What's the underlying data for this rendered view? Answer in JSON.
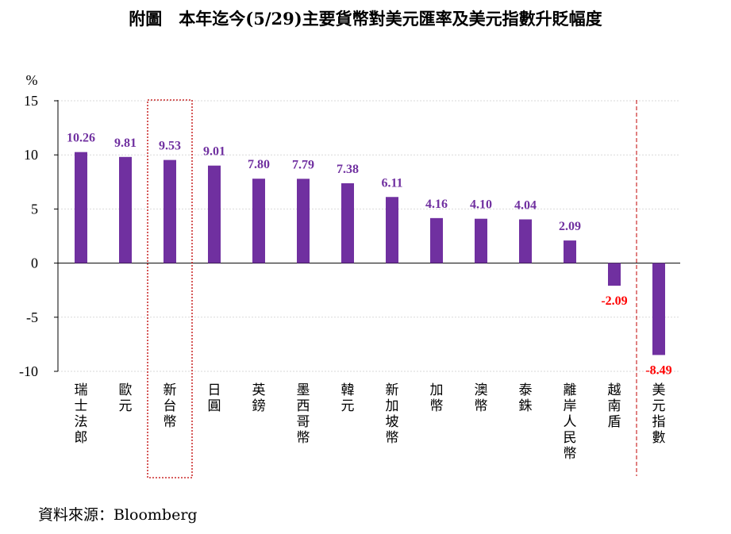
{
  "chart_data": {
    "type": "bar",
    "title": "附圖　本年迄今(5/29)主要貨幣對美元匯率及美元指數升貶幅度",
    "ylabel": "%",
    "ylim": [
      -10,
      15
    ],
    "yticks": [
      15,
      10,
      5,
      0,
      -5,
      -10
    ],
    "grid": true,
    "categories": [
      "瑞士法郎",
      "歐元",
      "新台幣",
      "日圓",
      "英鎊",
      "墨西哥幣",
      "韓元",
      "新加坡幣",
      "加幣",
      "澳幣",
      "泰銖",
      "離岸人民幣",
      "越南盾",
      "美元指數"
    ],
    "values": [
      10.26,
      9.81,
      9.53,
      9.01,
      7.8,
      7.79,
      7.38,
      6.11,
      4.16,
      4.1,
      4.04,
      2.09,
      -2.09,
      -8.49
    ],
    "value_labels": [
      "10.26",
      "9.81",
      "9.53",
      "9.01",
      "7.80",
      "7.79",
      "7.38",
      "6.11",
      "4.16",
      "4.10",
      "4.04",
      "2.09",
      "-2.09",
      "-8.49"
    ],
    "highlight_category": "新台幣",
    "source": "資料來源：Bloomberg",
    "colors": {
      "bar": "#7030a0",
      "positive_label": "#7030a0",
      "negative_label": "#ff0000",
      "highlight_box": "#c00000",
      "grid": "#d9d9d9",
      "axis": "#000000"
    }
  }
}
